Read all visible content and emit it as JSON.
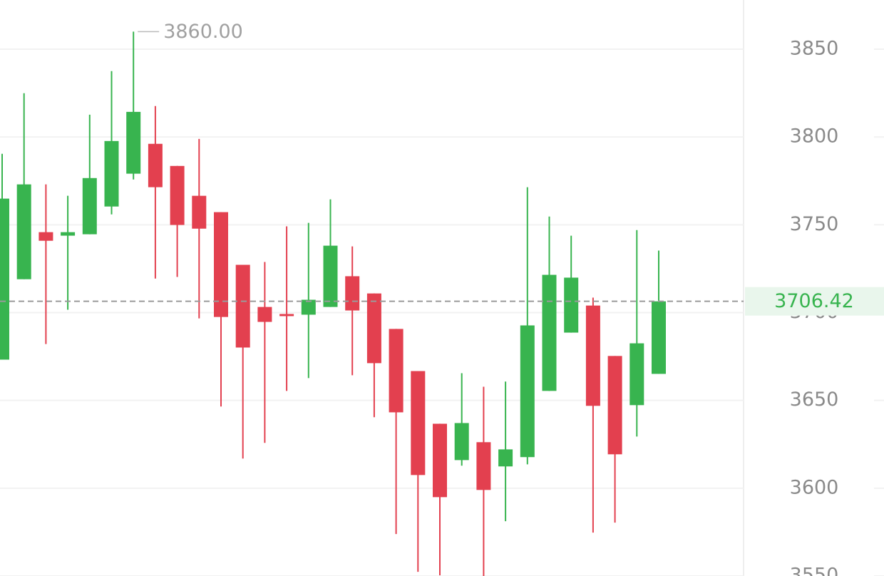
{
  "chart_data": {
    "type": "candlestick",
    "open": [
      3673.2,
      3719.0,
      3745.8,
      3743.8,
      3744.6,
      3760.4,
      3779.1,
      3796.1,
      3783.5,
      3766.5,
      3757.2,
      3727.2,
      3703.2,
      3699.2,
      3698.8,
      3703.2,
      3720.7,
      3710.9,
      3690.7,
      3666.7,
      3636.7,
      3616.0,
      3626.2,
      3612.4,
      3617.7,
      3655.4,
      3688.6,
      3704.0,
      3675.3,
      3647.3,
      3665.1
    ],
    "high": [
      3790.4,
      3824.9,
      3773.0,
      3766.5,
      3812.7,
      3837.5,
      3860,
      3817.6,
      3783.5,
      3798.9,
      3757.2,
      3727.2,
      3728.8,
      3749.1,
      3751.1,
      3764.5,
      3737.7,
      3710.9,
      3690.7,
      3666.7,
      3636.7,
      3665.5,
      3657.8,
      3660.7,
      3771.4,
      3754.7,
      3743.8,
      3708.5,
      3675.3,
      3747.0,
      3735.3
    ],
    "low": [
      3673.2,
      3719.0,
      3682.1,
      3701.6,
      3744.6,
      3755.9,
      3775.8,
      3719.4,
      3720.3,
      3696.7,
      3646.5,
      3616.9,
      3625.8,
      3655.4,
      3662.7,
      3703.2,
      3664.3,
      3640.4,
      3573.9,
      3552.4,
      3550.4,
      3612.8,
      3550.0,
      3581.2,
      3613.6,
      3655.4,
      3688.6,
      3574.7,
      3580.4,
      3629.4,
      3665.1
    ],
    "close": [
      3764.9,
      3773.0,
      3740.9,
      3745.8,
      3776.6,
      3797.7,
      3814.3,
      3771.4,
      3749.9,
      3747.8,
      3697.5,
      3680.1,
      3694.7,
      3698.4,
      3707.3,
      3738.1,
      3701.2,
      3671.2,
      3643.2,
      3607.5,
      3594.9,
      3637.1,
      3599.0,
      3622.1,
      3692.7,
      3721.5,
      3719.9,
      3646.9,
      3619.3,
      3682.5,
      3706.42
    ],
    "up_color": "#38b44f",
    "down_color": "#e3404f",
    "ylim": [
      3550,
      3878
    ],
    "yticks": [
      3550,
      3600,
      3650,
      3700,
      3750,
      3800,
      3850
    ],
    "grid": true,
    "high_annotation": {
      "value": 3860,
      "label": "3860.00"
    },
    "last_price": 3706.42
  }
}
